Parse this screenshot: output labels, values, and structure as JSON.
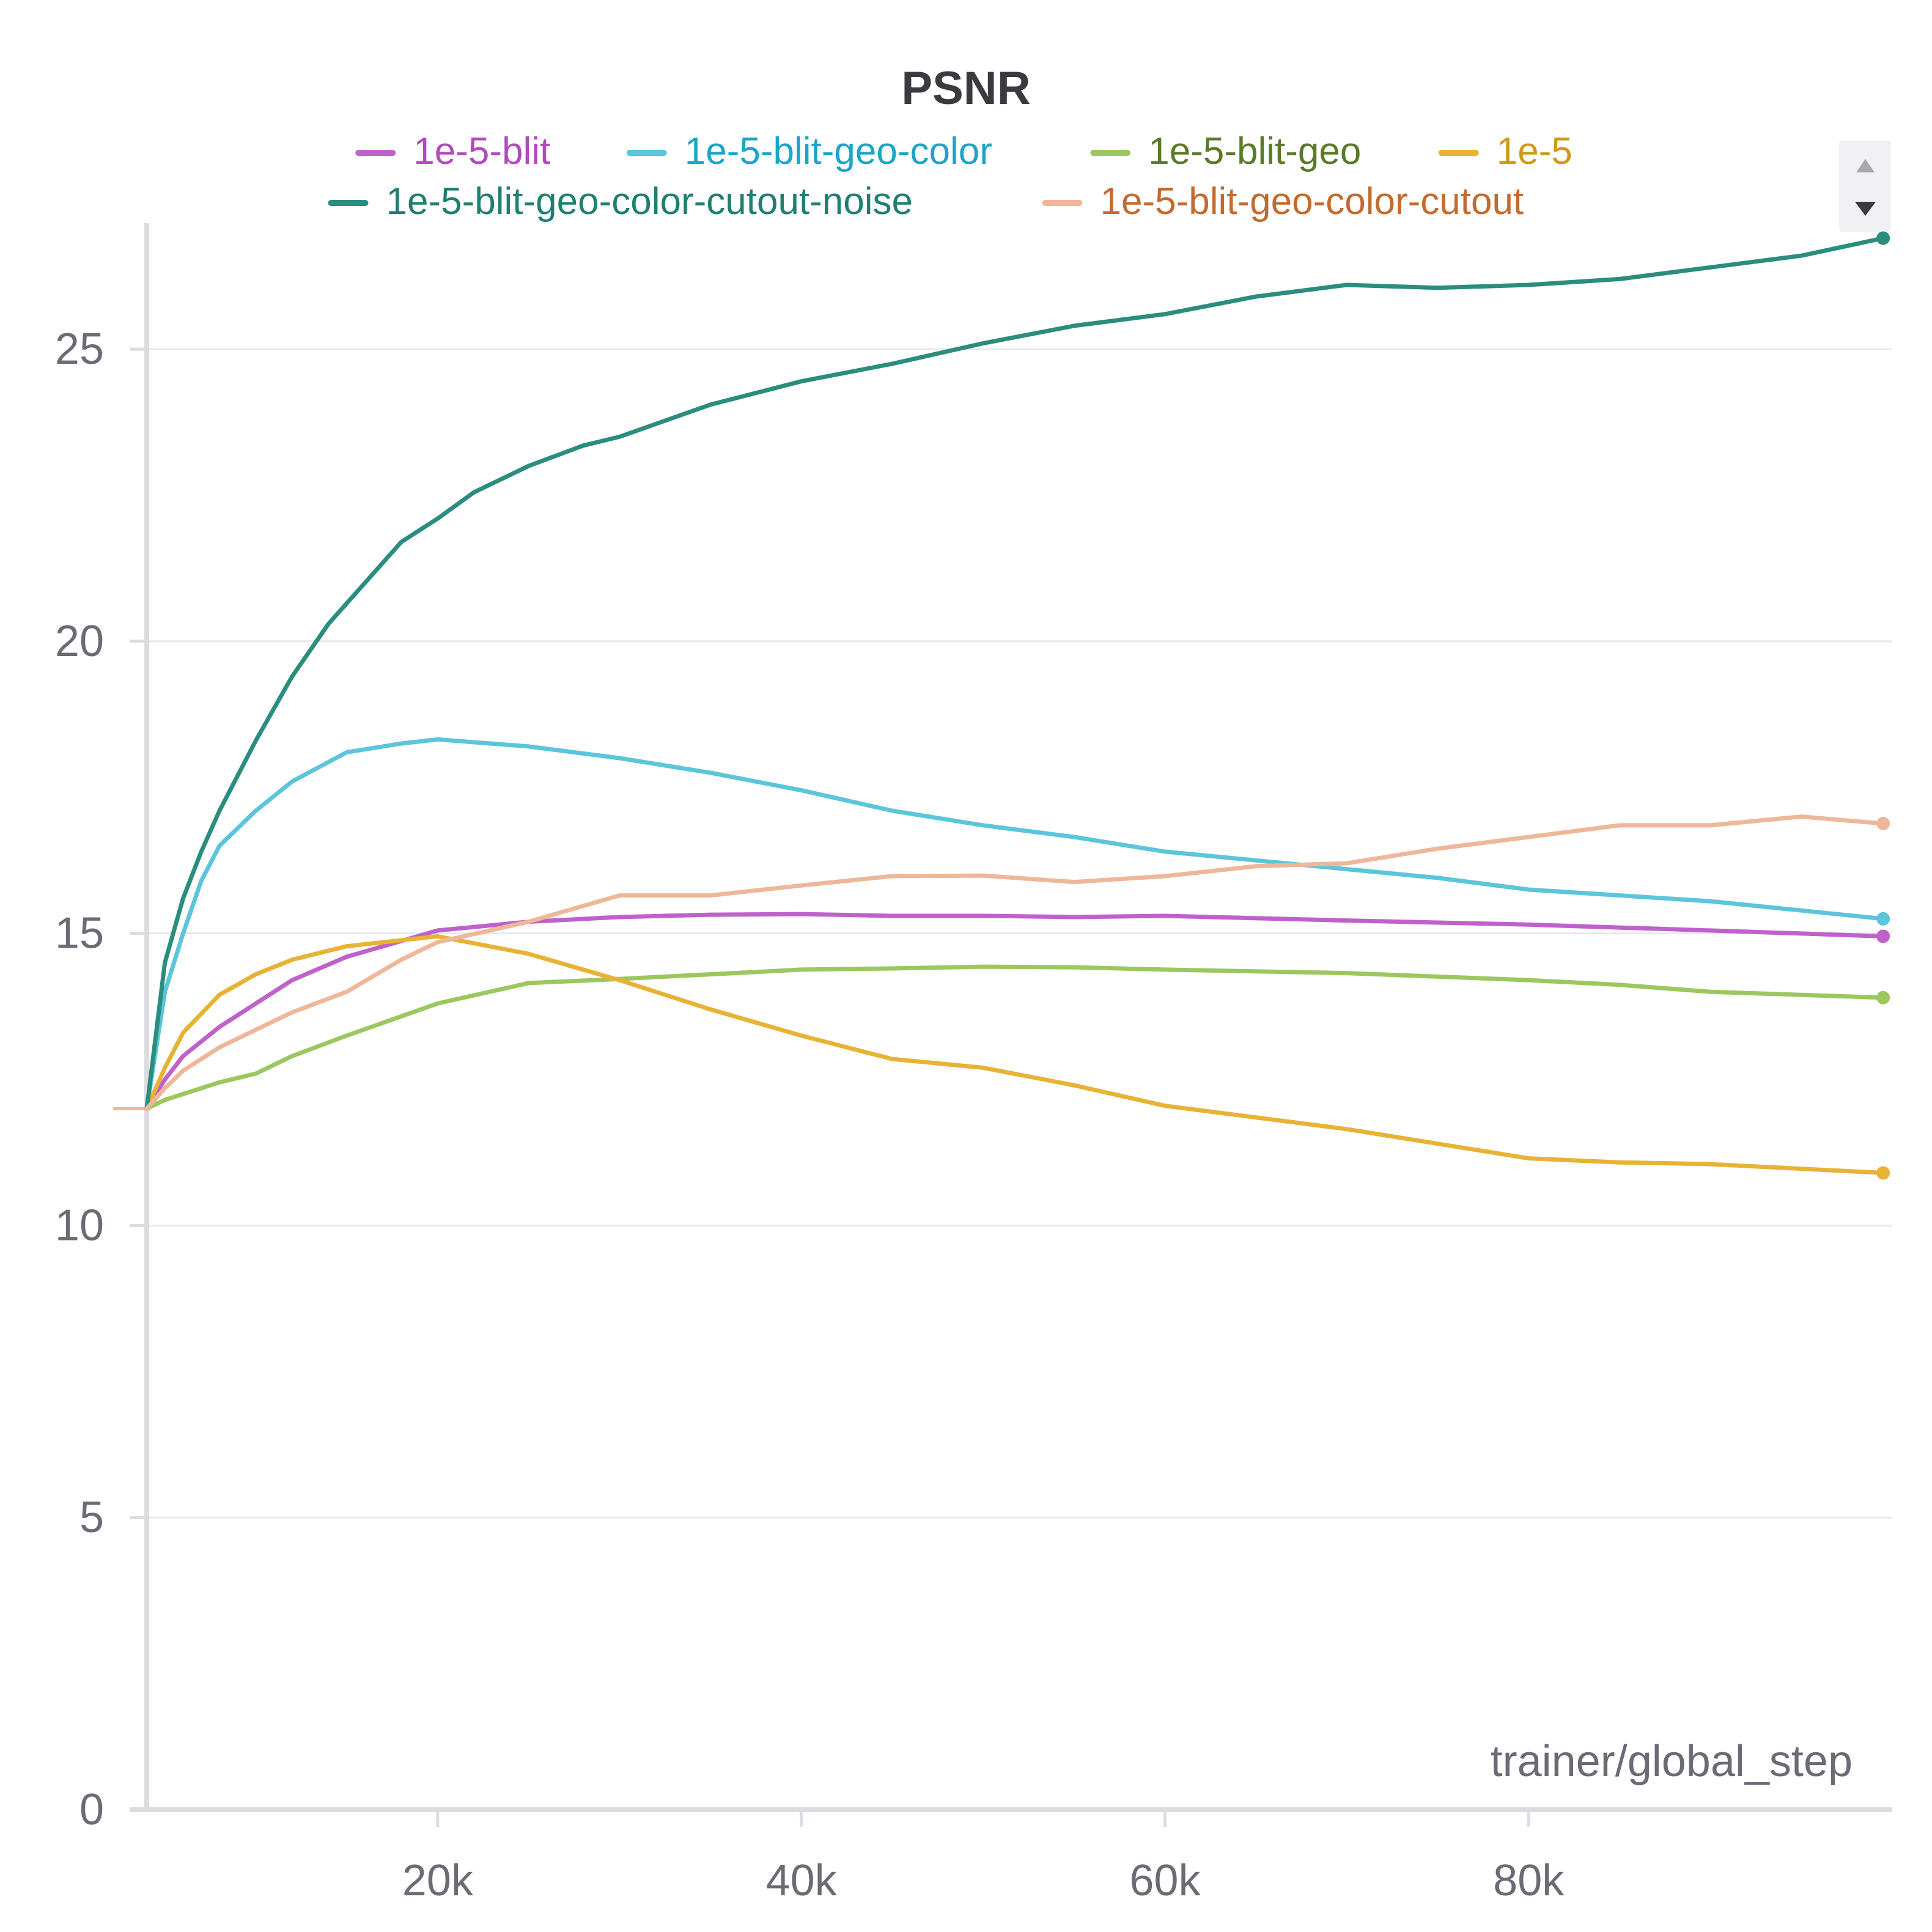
{
  "chart_data": {
    "type": "line",
    "title": "PSNR",
    "xlabel": "trainer/global_step",
    "ylabel": "",
    "xlim": [
      4000,
      100000
    ],
    "ylim": [
      0,
      27
    ],
    "x_ticks": [
      20000,
      40000,
      60000,
      80000
    ],
    "x_tick_labels": [
      "20k",
      "40k",
      "60k",
      "80k"
    ],
    "y_ticks": [
      0,
      5,
      10,
      15,
      20,
      25
    ],
    "y_tick_labels": [
      "0",
      "5",
      "10",
      "15",
      "20",
      "25"
    ],
    "grid": true,
    "legend_position": "top",
    "series": [
      {
        "name": "1e-5-blit",
        "color": "#c061cb",
        "label_color": "#b04bbd",
        "x": [
          4000,
          5000,
          6000,
          8000,
          10000,
          12000,
          15000,
          20000,
          25000,
          30000,
          35000,
          40000,
          45000,
          50000,
          55000,
          60000,
          70000,
          80000,
          90000,
          99500
        ],
        "y": [
          12.0,
          12.5,
          12.9,
          13.4,
          13.8,
          14.2,
          14.6,
          15.05,
          15.2,
          15.28,
          15.32,
          15.33,
          15.3,
          15.3,
          15.28,
          15.3,
          15.22,
          15.15,
          15.05,
          14.95
        ]
      },
      {
        "name": "1e-5-blit-geo-color",
        "color": "#5bc5db",
        "label_color": "#1aa5c8",
        "x": [
          4000,
          5000,
          6000,
          7000,
          8000,
          10000,
          12000,
          15000,
          18000,
          20000,
          25000,
          30000,
          35000,
          40000,
          45000,
          50000,
          55000,
          60000,
          70000,
          75000,
          80000,
          90000,
          99500
        ],
        "y": [
          12.0,
          14.0,
          15.0,
          15.9,
          16.5,
          17.1,
          17.6,
          18.1,
          18.25,
          18.32,
          18.2,
          18.0,
          17.75,
          17.45,
          17.1,
          16.85,
          16.65,
          16.4,
          16.1,
          15.95,
          15.75,
          15.55,
          15.25
        ]
      },
      {
        "name": "1e-5-blit-geo",
        "color": "#9cc75f",
        "label_color": "#5a7a28",
        "x": [
          4000,
          5000,
          8000,
          10000,
          12000,
          15000,
          20000,
          25000,
          30000,
          35000,
          40000,
          45000,
          50000,
          55000,
          60000,
          70000,
          80000,
          85000,
          90000,
          99500
        ],
        "y": [
          12.0,
          12.15,
          12.45,
          12.6,
          12.9,
          13.25,
          13.8,
          14.15,
          14.22,
          14.3,
          14.38,
          14.4,
          14.43,
          14.42,
          14.38,
          14.32,
          14.2,
          14.12,
          14.0,
          13.9
        ]
      },
      {
        "name": "1e-5",
        "color": "#e8b335",
        "label_color": "#cf9a12",
        "x": [
          4000,
          5000,
          6000,
          8000,
          10000,
          12000,
          15000,
          20000,
          25000,
          30000,
          35000,
          40000,
          45000,
          50000,
          55000,
          60000,
          70000,
          75000,
          80000,
          85000,
          90000,
          99500
        ],
        "y": [
          12.0,
          12.7,
          13.3,
          13.95,
          14.3,
          14.55,
          14.78,
          14.95,
          14.65,
          14.2,
          13.7,
          13.25,
          12.85,
          12.7,
          12.4,
          12.05,
          11.65,
          11.4,
          11.15,
          11.08,
          11.05,
          10.9
        ]
      },
      {
        "name": "1e-5-blit-geo-color-cutout-noise",
        "color": "#2a8d7e",
        "label_color": "#1f7f70",
        "x": [
          4000,
          5000,
          6000,
          7000,
          8000,
          10000,
          12000,
          14000,
          16000,
          18000,
          20000,
          22000,
          25000,
          28000,
          30000,
          35000,
          40000,
          45000,
          50000,
          55000,
          60000,
          65000,
          70000,
          75000,
          80000,
          85000,
          90000,
          95000,
          99500
        ],
        "y": [
          12.0,
          14.5,
          15.6,
          16.4,
          17.1,
          18.3,
          19.4,
          20.3,
          21.0,
          21.7,
          22.1,
          22.55,
          23.0,
          23.35,
          23.5,
          24.05,
          24.45,
          24.75,
          25.1,
          25.4,
          25.6,
          25.9,
          26.1,
          26.05,
          26.1,
          26.2,
          26.4,
          26.6,
          26.9
        ]
      },
      {
        "name": "1e-5-blit-geo-color-cutout",
        "color": "#efb79a",
        "label_color": "#c46a2e",
        "x": [
          4000,
          5000,
          6000,
          8000,
          10000,
          12000,
          15000,
          18000,
          20000,
          25000,
          30000,
          35000,
          40000,
          45000,
          50000,
          55000,
          60000,
          65000,
          70000,
          75000,
          80000,
          85000,
          90000,
          95000,
          99500
        ],
        "y": [
          12.0,
          12.35,
          12.65,
          13.05,
          13.35,
          13.65,
          14.0,
          14.55,
          14.85,
          15.2,
          15.65,
          15.65,
          15.82,
          15.98,
          15.99,
          15.88,
          15.98,
          16.15,
          16.2,
          16.45,
          16.65,
          16.85,
          16.85,
          17.0,
          16.88
        ]
      }
    ]
  },
  "legend_controls": {
    "up_icon": "scroll-up-triangle-icon",
    "down_icon": "scroll-down-triangle-icon"
  }
}
